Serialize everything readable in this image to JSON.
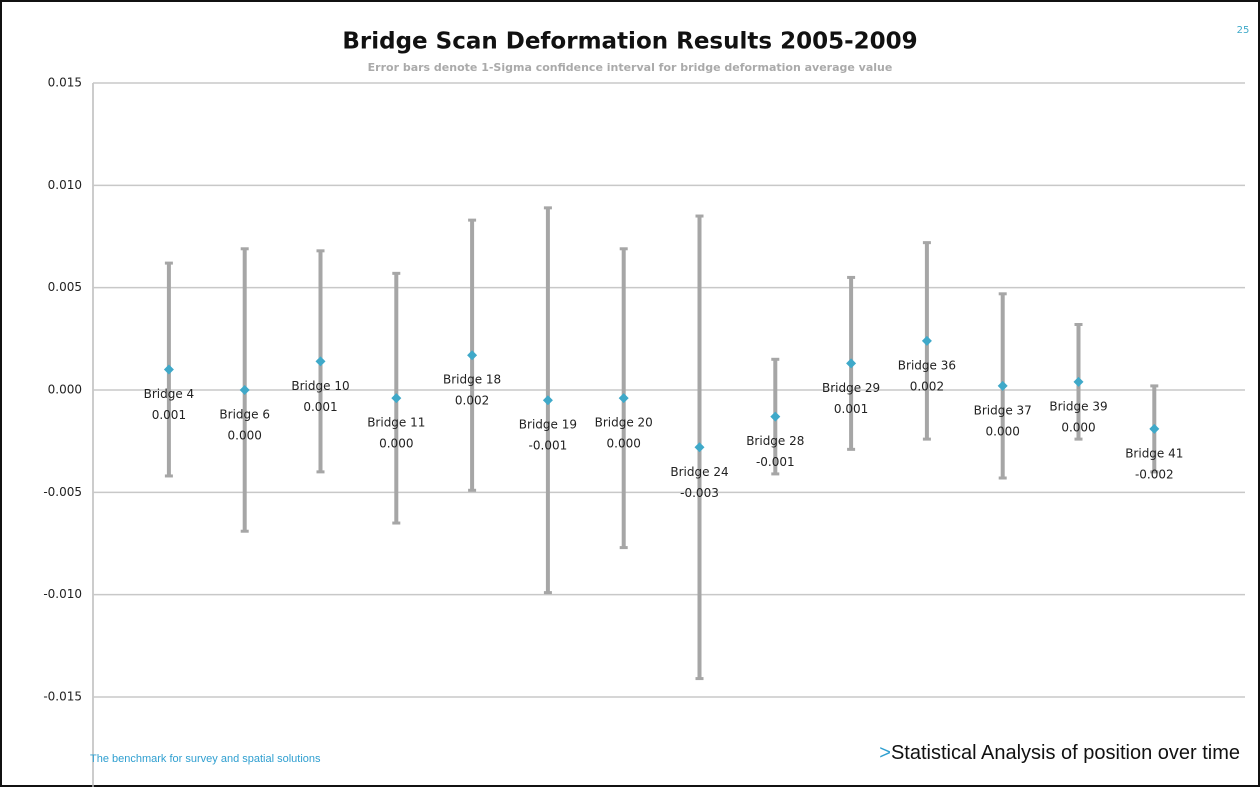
{
  "slide_number": "25",
  "footer_left": "The benchmark for survey and spatial solutions",
  "footer_right_marker": ">",
  "footer_right": "Statistical Analysis  of position over time",
  "chart_data": {
    "type": "errorbar",
    "title": "Bridge Scan Deformation Results 2005-2009",
    "subtitle": "Error bars denote 1-Sigma confidence interval for bridge deformation average value",
    "categories": [
      "Bridge 4",
      "Bridge 6",
      "Bridge 10",
      "Bridge 11",
      "Bridge 18",
      "Bridge 19",
      "Bridge 20",
      "Bridge 24",
      "Bridge 28",
      "Bridge 29",
      "Bridge 36",
      "Bridge 37",
      "Bridge 39",
      "Bridge 41"
    ],
    "values": [
      0.001,
      0.0,
      0.0014,
      -0.0004,
      0.0017,
      -0.0005,
      -0.0004,
      -0.0028,
      -0.0013,
      0.0013,
      0.0024,
      0.0002,
      0.0004,
      -0.0019
    ],
    "value_labels": [
      "0.001",
      "0.000",
      "0.001",
      "0.000",
      "0.002",
      "-0.001",
      "0.000",
      "-0.003",
      "-0.001",
      "0.001",
      "0.002",
      "0.000",
      "0.000",
      "-0.002"
    ],
    "errors": [
      0.0052,
      0.0069,
      0.0054,
      0.0061,
      0.0066,
      0.0094,
      0.0073,
      0.0113,
      0.0028,
      0.0042,
      0.0048,
      0.0045,
      0.0028,
      0.0021
    ],
    "color": "#3fa9c9",
    "error_color": "#a6a6a6",
    "ylim": [
      -0.015,
      0.015
    ],
    "yticks": [
      {
        "value": -0.015,
        "label": "-0.015"
      },
      {
        "value": -0.01,
        "label": "-0.010"
      },
      {
        "value": -0.005,
        "label": "-0.005"
      },
      {
        "value": 0,
        "label": "0.000"
      },
      {
        "value": 0.005,
        "label": "0.005"
      },
      {
        "value": 0.01,
        "label": "0.010"
      },
      {
        "value": 0.015,
        "label": "0.015"
      }
    ],
    "grid": true
  }
}
